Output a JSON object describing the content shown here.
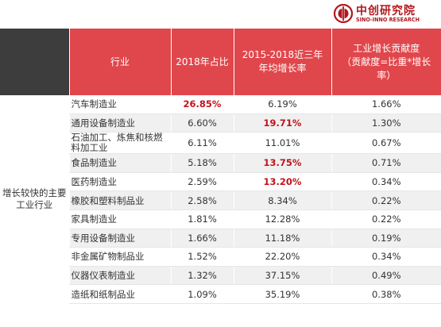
{
  "logo": {
    "name": "中创研究院",
    "subtitle": "SINO-INNO RESEARCH",
    "brand_color": "#b2171c"
  },
  "table": {
    "header_bg": "#e0474c",
    "corner_bg": "#3d3d3d",
    "highlight_color": "#c0141c",
    "headers": {
      "industry": "行业",
      "share_2018": "2018年占比",
      "cagr_line1": "2015-2018近三年",
      "cagr_line2": "年均增长率",
      "contribution_line1": "工业增长贡献度",
      "contribution_line2": "（贡献度=比重*增长率）"
    },
    "group_label": "增长较快的主要工业行业",
    "rows": [
      {
        "industry": "汽车制造业",
        "share": "26.85%",
        "cagr": "6.19%",
        "contribution": "1.66%"
      },
      {
        "industry": "通用设备制造业",
        "share": "6.60%",
        "cagr": "19.71%",
        "contribution": "1.30%"
      },
      {
        "industry": "石油加工、炼焦和核燃料加工业",
        "share": "6.11%",
        "cagr": "11.01%",
        "contribution": "0.67%"
      },
      {
        "industry": "食品制造业",
        "share": "5.18%",
        "cagr": "13.75%",
        "contribution": "0.71%"
      },
      {
        "industry": "医药制造业",
        "share": "2.59%",
        "cagr": "13.20%",
        "contribution": "0.34%"
      },
      {
        "industry": "橡胶和塑料制品业",
        "share": "2.58%",
        "cagr": "8.34%",
        "contribution": "0.22%"
      },
      {
        "industry": "家具制造业",
        "share": "1.81%",
        "cagr": "12.28%",
        "contribution": "0.22%"
      },
      {
        "industry": "专用设备制造业",
        "share": "1.66%",
        "cagr": "11.18%",
        "contribution": "0.19%"
      },
      {
        "industry": "非金属矿物制品业",
        "share": "1.52%",
        "cagr": "22.20%",
        "contribution": "0.34%"
      },
      {
        "industry": "仪器仪表制造业",
        "share": "1.32%",
        "cagr": "37.15%",
        "contribution": "0.49%"
      },
      {
        "industry": "造纸和纸制品业",
        "share": "1.09%",
        "cagr": "35.19%",
        "contribution": "0.38%"
      }
    ]
  }
}
